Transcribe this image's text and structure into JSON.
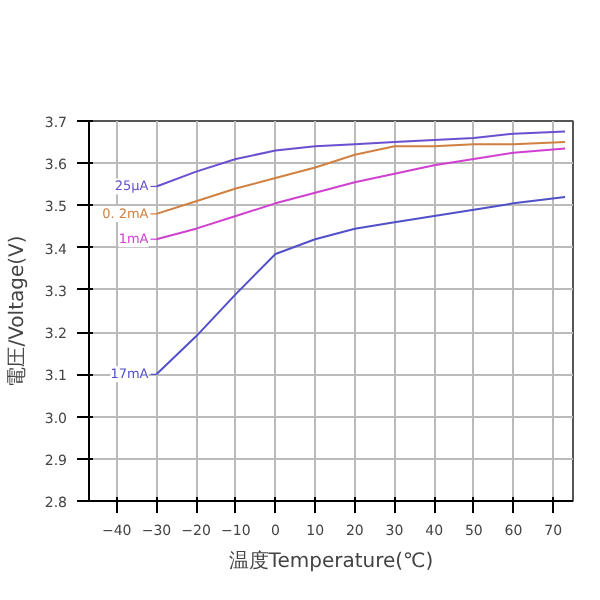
{
  "chart_data": {
    "type": "line",
    "xlabel": "温度Temperature(℃)",
    "ylabel": "電圧/Voltage(V)",
    "xlim": [
      -47,
      75
    ],
    "ylim": [
      2.8,
      3.7
    ],
    "xticks": [
      -40,
      -30,
      -20,
      -10,
      0,
      10,
      20,
      30,
      40,
      50,
      60,
      70
    ],
    "yticks": [
      {
        "value": 2.8,
        "label": "2.8"
      },
      {
        "value": 2.9,
        "label": "2.9"
      },
      {
        "value": 3.0,
        "label": "3.0"
      },
      {
        "value": 3.1,
        "label": "3.1"
      },
      {
        "value": 3.2,
        "label": "3.2"
      },
      {
        "value": 3.3,
        "label": "3.3"
      },
      {
        "value": 3.4,
        "label": "3.4"
      },
      {
        "value": 3.5,
        "label": "3.5"
      },
      {
        "value": 3.6,
        "label": "3.6"
      },
      {
        "value": 3.7,
        "label": "3.7"
      }
    ],
    "grid": true,
    "legend": "left",
    "marker": "none",
    "line_style": "solid",
    "x": [
      -30,
      -20,
      -10,
      0,
      10,
      20,
      30,
      40,
      50,
      60,
      73
    ],
    "series": [
      {
        "name": "25μA",
        "color": "#6a50d0",
        "values": [
          3.545,
          3.58,
          3.61,
          3.63,
          3.64,
          3.645,
          3.65,
          3.655,
          3.66,
          3.67,
          3.675
        ]
      },
      {
        "name": "0. 2mA",
        "color": "#d08040",
        "values": [
          3.48,
          3.51,
          3.54,
          3.565,
          3.59,
          3.62,
          3.64,
          3.64,
          3.645,
          3.645,
          3.65
        ]
      },
      {
        "name": "1mA",
        "color": "#d040d0",
        "values": [
          3.42,
          3.445,
          3.475,
          3.505,
          3.53,
          3.555,
          3.575,
          3.595,
          3.61,
          3.625,
          3.635
        ]
      },
      {
        "name": "17mA",
        "color": "#5050c8",
        "values": [
          3.1,
          3.19,
          3.29,
          3.385,
          3.42,
          3.445,
          3.46,
          3.475,
          3.49,
          3.505,
          3.52
        ]
      }
    ]
  }
}
